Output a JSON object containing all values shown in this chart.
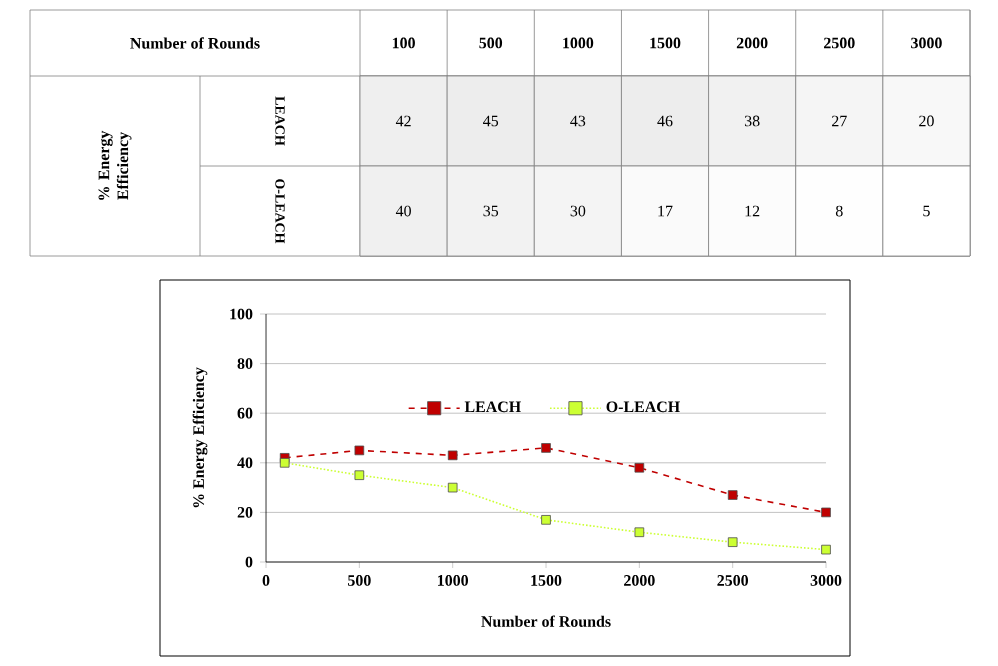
{
  "chart_data": [
    {
      "type": "heatmap",
      "xlabel": "Number of Rounds",
      "ylabel": "% Energy Efficiency",
      "categories": [
        "100",
        "500",
        "1000",
        "1500",
        "2000",
        "2500",
        "3000"
      ],
      "y_categories": [
        "LEACH",
        "O-LEACH"
      ],
      "cells": [
        [
          42,
          45,
          43,
          46,
          38,
          27,
          20
        ],
        [
          40,
          35,
          30,
          17,
          12,
          8,
          5
        ]
      ],
      "cell_labels": [
        [
          "42",
          "45",
          "43",
          "46",
          "38",
          "27",
          "20"
        ],
        [
          "40",
          "35",
          "30",
          "17",
          "12",
          "8",
          "5"
        ]
      ]
    },
    {
      "type": "line",
      "xlabel": "Number of Rounds",
      "ylabel": "% Energy Efficiency",
      "x": [
        100,
        500,
        1000,
        1500,
        2000,
        2500,
        3000
      ],
      "series": [
        {
          "name": "LEACH",
          "color": "#c00000",
          "line_style": "dashed",
          "marker": "square",
          "values": [
            42,
            45,
            43,
            46,
            38,
            27,
            20
          ]
        },
        {
          "name": "O-LEACH",
          "color": "#ccff33",
          "line_style": "dotted",
          "marker": "square",
          "values": [
            40,
            35,
            30,
            17,
            12,
            8,
            5
          ]
        }
      ],
      "xlim": [
        0,
        3000
      ],
      "xticks": [
        0,
        500,
        1000,
        1500,
        2000,
        2500,
        3000
      ],
      "ylim": [
        0,
        100
      ],
      "yticks": [
        0,
        20,
        40,
        60,
        80,
        100
      ],
      "grid": "y",
      "legend": "center"
    }
  ]
}
